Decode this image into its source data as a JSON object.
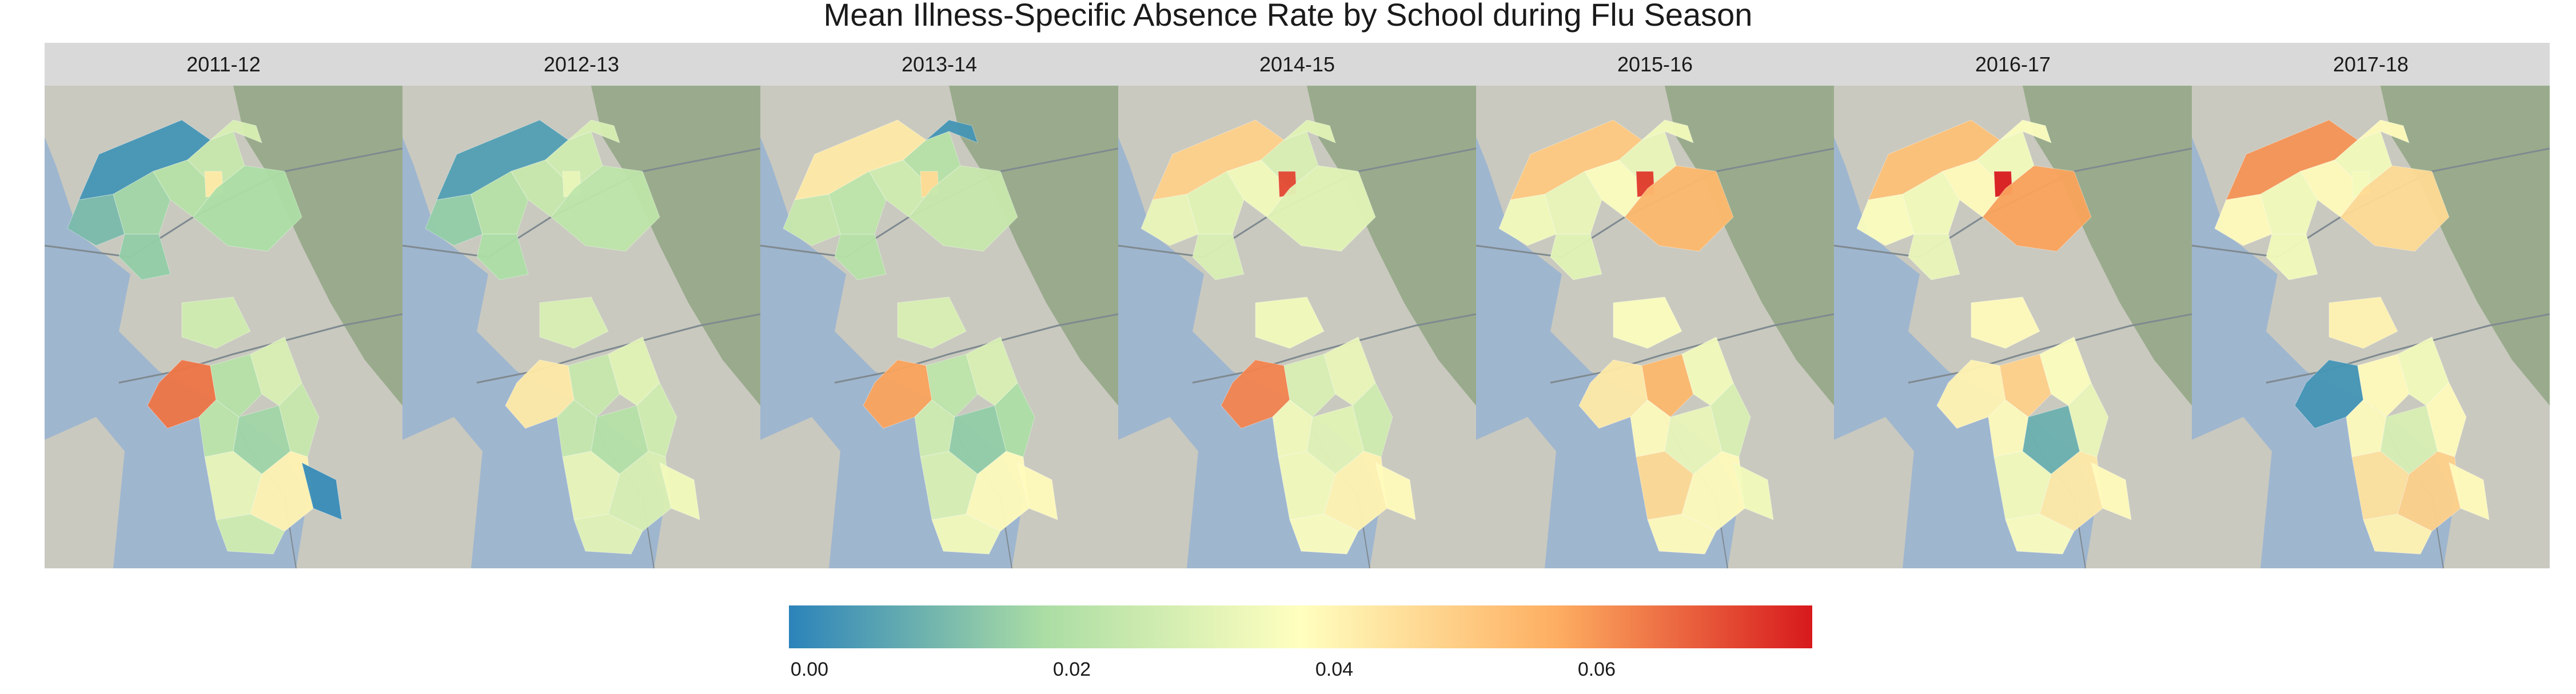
{
  "title": "Mean Illness-Specific Absence Rate by School during Flu Season",
  "legend": {
    "min": 0.0,
    "max": 0.078,
    "ticks": [
      "0.00",
      "0.02",
      "0.04",
      "0.06"
    ],
    "tick_values": [
      0.0,
      0.02,
      0.04,
      0.06
    ],
    "colors": [
      "#2b83ba",
      "#abdda4",
      "#ffffbf",
      "#fdae61",
      "#d7191c"
    ]
  },
  "colors": {
    "water": "#9fb6cf",
    "land": "#c9c9bf",
    "hills": "#93a786",
    "roads": "#7f8a90",
    "strip": "#d9d9d9"
  },
  "panels": [
    {
      "season": "2011-12",
      "values": [
        0.004,
        0.012,
        0.018,
        0.022,
        0.026,
        0.03,
        0.044,
        0.02,
        0.016,
        0.028,
        0.066,
        0.022,
        0.03,
        0.024,
        0.018,
        0.026,
        0.034,
        0.042,
        0.002,
        0.028
      ]
    },
    {
      "season": "2012-13",
      "values": [
        0.006,
        0.016,
        0.022,
        0.026,
        0.028,
        0.03,
        0.034,
        0.024,
        0.02,
        0.03,
        0.044,
        0.026,
        0.032,
        0.026,
        0.022,
        0.028,
        0.034,
        0.03,
        0.036,
        0.032
      ]
    },
    {
      "season": "2013-14",
      "values": [
        0.044,
        0.026,
        0.024,
        0.028,
        0.022,
        0.004,
        0.048,
        0.026,
        0.022,
        0.03,
        0.06,
        0.024,
        0.03,
        0.028,
        0.016,
        0.02,
        0.03,
        0.04,
        0.04,
        0.036
      ]
    },
    {
      "season": "2014-15",
      "values": [
        0.05,
        0.034,
        0.032,
        0.036,
        0.03,
        0.032,
        0.072,
        0.032,
        0.03,
        0.036,
        0.064,
        0.03,
        0.034,
        0.036,
        0.032,
        0.028,
        0.036,
        0.042,
        0.04,
        0.038
      ]
    },
    {
      "season": "2015-16",
      "values": [
        0.052,
        0.036,
        0.034,
        0.038,
        0.034,
        0.036,
        0.074,
        0.056,
        0.032,
        0.038,
        0.044,
        0.056,
        0.036,
        0.04,
        0.034,
        0.03,
        0.048,
        0.04,
        0.036,
        0.04
      ]
    },
    {
      "season": "2016-17",
      "values": [
        0.054,
        0.038,
        0.036,
        0.04,
        0.036,
        0.038,
        0.078,
        0.06,
        0.034,
        0.04,
        0.042,
        0.05,
        0.038,
        0.04,
        0.01,
        0.034,
        0.036,
        0.044,
        0.04,
        0.038
      ]
    },
    {
      "season": "2017-18",
      "values": [
        0.062,
        0.04,
        0.036,
        0.04,
        0.036,
        0.04,
        0.036,
        0.048,
        0.036,
        0.042,
        0.004,
        0.04,
        0.036,
        0.04,
        0.03,
        0.04,
        0.046,
        0.05,
        0.04,
        0.042
      ]
    }
  ]
}
